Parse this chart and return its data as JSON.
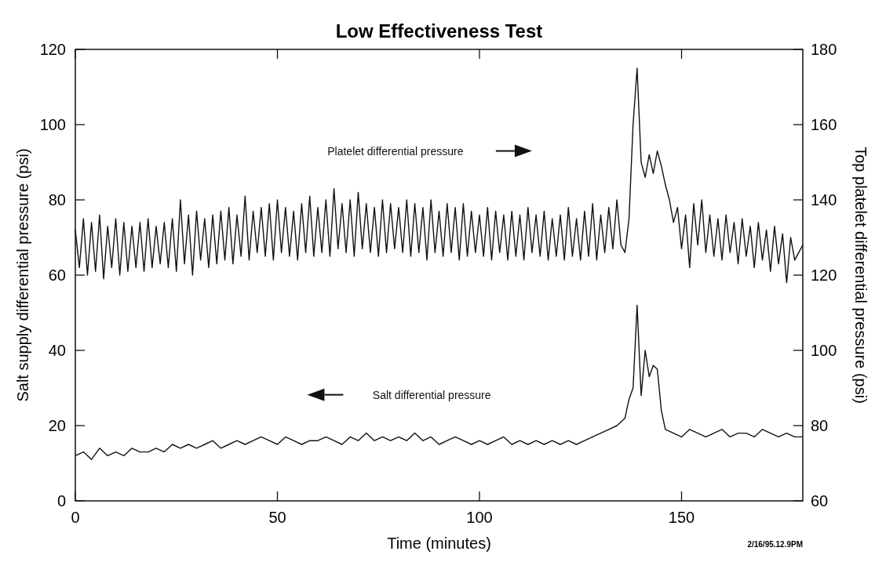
{
  "chart_data": {
    "type": "line",
    "title": "Low Effectiveness Test",
    "xlabel": "Time (minutes)",
    "ylabel": "Salt supply differential pressure (psi)",
    "y2label": "Top platelet differential pressure (psi)",
    "xlim": [
      0,
      180
    ],
    "xticks": [
      0,
      50,
      100,
      150
    ],
    "ylim": [
      0,
      120
    ],
    "yticks": [
      0,
      20,
      40,
      60,
      80,
      100,
      120
    ],
    "y2lim": [
      60,
      180
    ],
    "y2ticks": [
      60,
      80,
      100,
      120,
      140,
      160,
      180
    ],
    "legend": false,
    "grid": false,
    "annotations": [
      "2/16/95.12.9PM"
    ],
    "series": [
      {
        "name": "Platelet differential pressure",
        "color": "#111111",
        "axis": "y2",
        "x": [
          0,
          1,
          2,
          3,
          4,
          5,
          6,
          7,
          8,
          9,
          10,
          11,
          12,
          13,
          14,
          15,
          16,
          17,
          18,
          19,
          20,
          21,
          22,
          23,
          24,
          25,
          26,
          27,
          28,
          29,
          30,
          31,
          32,
          33,
          34,
          35,
          36,
          37,
          38,
          39,
          40,
          41,
          42,
          43,
          44,
          45,
          46,
          47,
          48,
          49,
          50,
          51,
          52,
          53,
          54,
          55,
          56,
          57,
          58,
          59,
          60,
          61,
          62,
          63,
          64,
          65,
          66,
          67,
          68,
          69,
          70,
          71,
          72,
          73,
          74,
          75,
          76,
          77,
          78,
          79,
          80,
          81,
          82,
          83,
          84,
          85,
          86,
          87,
          88,
          89,
          90,
          91,
          92,
          93,
          94,
          95,
          96,
          97,
          98,
          99,
          100,
          101,
          102,
          103,
          104,
          105,
          106,
          107,
          108,
          109,
          110,
          111,
          112,
          113,
          114,
          115,
          116,
          117,
          118,
          119,
          120,
          121,
          122,
          123,
          124,
          125,
          126,
          127,
          128,
          129,
          130,
          131,
          132,
          133,
          134,
          135,
          136,
          137,
          138,
          139,
          140,
          141,
          142,
          143,
          144,
          145,
          146,
          147,
          148,
          149,
          150,
          151,
          152,
          153,
          154,
          155,
          156,
          157,
          158,
          159,
          160,
          161,
          162,
          163,
          164,
          165,
          166,
          167,
          168,
          169,
          170,
          171,
          172,
          173,
          174,
          175,
          176,
          177,
          178,
          179,
          180
        ],
        "values": [
          132,
          122,
          135,
          120,
          134,
          121,
          136,
          119,
          133,
          122,
          135,
          120,
          134,
          121,
          133,
          122,
          134,
          121,
          135,
          122,
          133,
          123,
          134,
          122,
          135,
          121,
          140,
          123,
          136,
          120,
          137,
          124,
          135,
          122,
          136,
          123,
          137,
          124,
          138,
          123,
          136,
          125,
          141,
          124,
          137,
          126,
          138,
          125,
          139,
          124,
          140,
          126,
          138,
          125,
          137,
          124,
          139,
          126,
          141,
          125,
          138,
          126,
          140,
          125,
          143,
          127,
          139,
          126,
          140,
          125,
          142,
          127,
          139,
          126,
          138,
          125,
          140,
          126,
          139,
          127,
          138,
          126,
          140,
          125,
          139,
          126,
          138,
          124,
          140,
          126,
          137,
          125,
          139,
          126,
          138,
          124,
          139,
          125,
          137,
          126,
          136,
          125,
          138,
          124,
          137,
          126,
          136,
          124,
          137,
          125,
          136,
          124,
          138,
          126,
          136,
          125,
          137,
          124,
          135,
          125,
          136,
          124,
          138,
          125,
          135,
          124,
          137,
          125,
          139,
          124,
          136,
          126,
          138,
          127,
          140,
          128,
          126,
          135,
          160,
          175,
          150,
          146,
          152,
          147,
          153,
          149,
          144,
          140,
          134,
          138,
          127,
          136,
          122,
          139,
          128,
          140,
          126,
          136,
          125,
          135,
          124,
          136,
          126,
          134,
          123,
          135,
          125,
          133,
          122,
          134,
          124,
          132,
          121,
          133,
          123,
          131,
          118,
          130,
          124,
          126,
          128
        ]
      },
      {
        "name": "Salt differential pressure",
        "color": "#111111",
        "x": [
          0,
          2,
          4,
          6,
          8,
          10,
          12,
          14,
          16,
          18,
          20,
          22,
          24,
          26,
          28,
          30,
          32,
          34,
          36,
          38,
          40,
          42,
          44,
          46,
          48,
          50,
          52,
          54,
          56,
          58,
          60,
          62,
          64,
          66,
          68,
          70,
          72,
          74,
          76,
          78,
          80,
          82,
          84,
          86,
          88,
          90,
          92,
          94,
          96,
          98,
          100,
          102,
          104,
          106,
          108,
          110,
          112,
          114,
          116,
          118,
          120,
          122,
          124,
          126,
          128,
          130,
          132,
          134,
          136,
          137,
          138,
          139,
          140,
          141,
          142,
          143,
          144,
          145,
          146,
          148,
          150,
          152,
          154,
          156,
          158,
          160,
          162,
          164,
          166,
          168,
          170,
          172,
          174,
          176,
          178,
          180
        ],
        "values": [
          12,
          13,
          11,
          14,
          12,
          13,
          12,
          14,
          13,
          13,
          14,
          13,
          15,
          14,
          15,
          14,
          15,
          16,
          14,
          15,
          16,
          15,
          16,
          17,
          16,
          15,
          17,
          16,
          15,
          16,
          16,
          17,
          16,
          15,
          17,
          16,
          18,
          16,
          17,
          16,
          17,
          16,
          18,
          16,
          17,
          15,
          16,
          17,
          16,
          15,
          16,
          15,
          16,
          17,
          15,
          16,
          15,
          16,
          15,
          16,
          15,
          16,
          15,
          16,
          17,
          18,
          19,
          20,
          22,
          27,
          30,
          52,
          28,
          40,
          33,
          36,
          35,
          24,
          19,
          18,
          17,
          19,
          18,
          17,
          18,
          19,
          17,
          18,
          18,
          17,
          19,
          18,
          17,
          18,
          17,
          17
        ]
      }
    ]
  }
}
